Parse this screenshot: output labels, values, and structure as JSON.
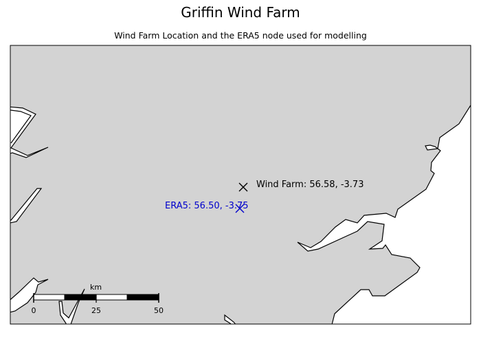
{
  "title": "Griffin Wind Farm",
  "subtitle": "Wind Farm Location and the ERA5 node used for modelling",
  "colors": {
    "land": "#d3d3d3",
    "sea": "#ffffff",
    "coastline": "#000000",
    "wind_farm_marker": "#000000",
    "era5_marker": "#0000cc"
  },
  "markers": {
    "wind_farm": {
      "label": "Wind Farm: 56.58, -3.73",
      "lat": 56.58,
      "lon": -3.73,
      "icon": "x-marker-icon"
    },
    "era5": {
      "label": "ERA5: 56.50, -3.75",
      "lat": 56.5,
      "lon": -3.75,
      "icon": "x-marker-icon"
    }
  },
  "scale_bar": {
    "unit": "km",
    "ticks": [
      "0",
      "25",
      "50"
    ]
  }
}
